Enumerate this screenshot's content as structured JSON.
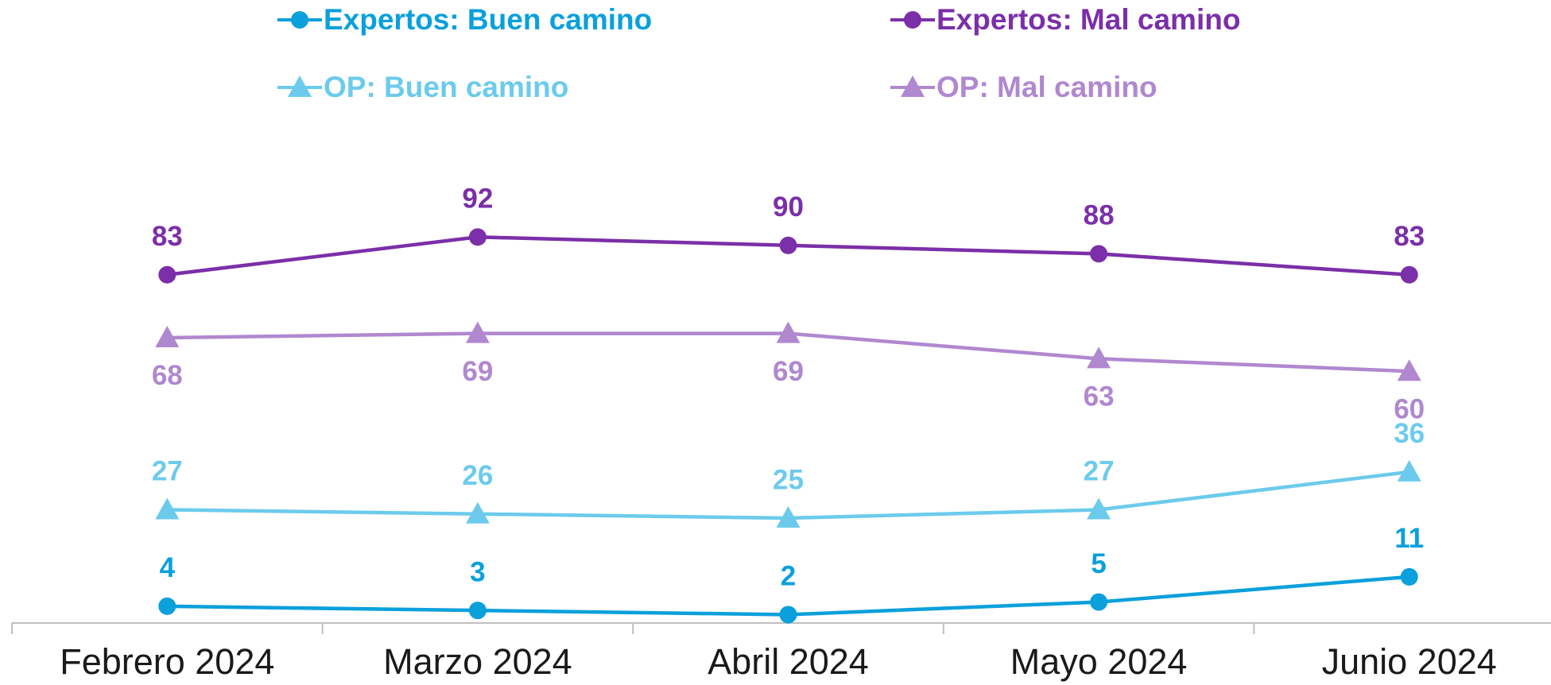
{
  "chart_data": {
    "type": "line",
    "categories": [
      "Febrero 2024",
      "Marzo 2024",
      "Abril 2024",
      "Mayo 2024",
      "Junio 2024"
    ],
    "series": [
      {
        "name": "Expertos: Buen camino",
        "color": "#0aa0dc",
        "marker": "circle",
        "label_position": "above",
        "values": [
          4,
          3,
          2,
          5,
          11
        ]
      },
      {
        "name": "Expertos: Mal camino",
        "color": "#7b2fa8",
        "marker": "circle",
        "label_position": "above",
        "values": [
          83,
          92,
          90,
          88,
          83
        ]
      },
      {
        "name": "OP: Buen camino",
        "color": "#6ccbec",
        "marker": "triangle",
        "label_position": "above",
        "values": [
          27,
          26,
          25,
          27,
          36
        ]
      },
      {
        "name": "OP: Mal camino",
        "color": "#b088cf",
        "marker": "triangle",
        "label_position": "below",
        "values": [
          68,
          69,
          69,
          63,
          60
        ]
      }
    ],
    "ylim": [
      0,
      100
    ]
  }
}
